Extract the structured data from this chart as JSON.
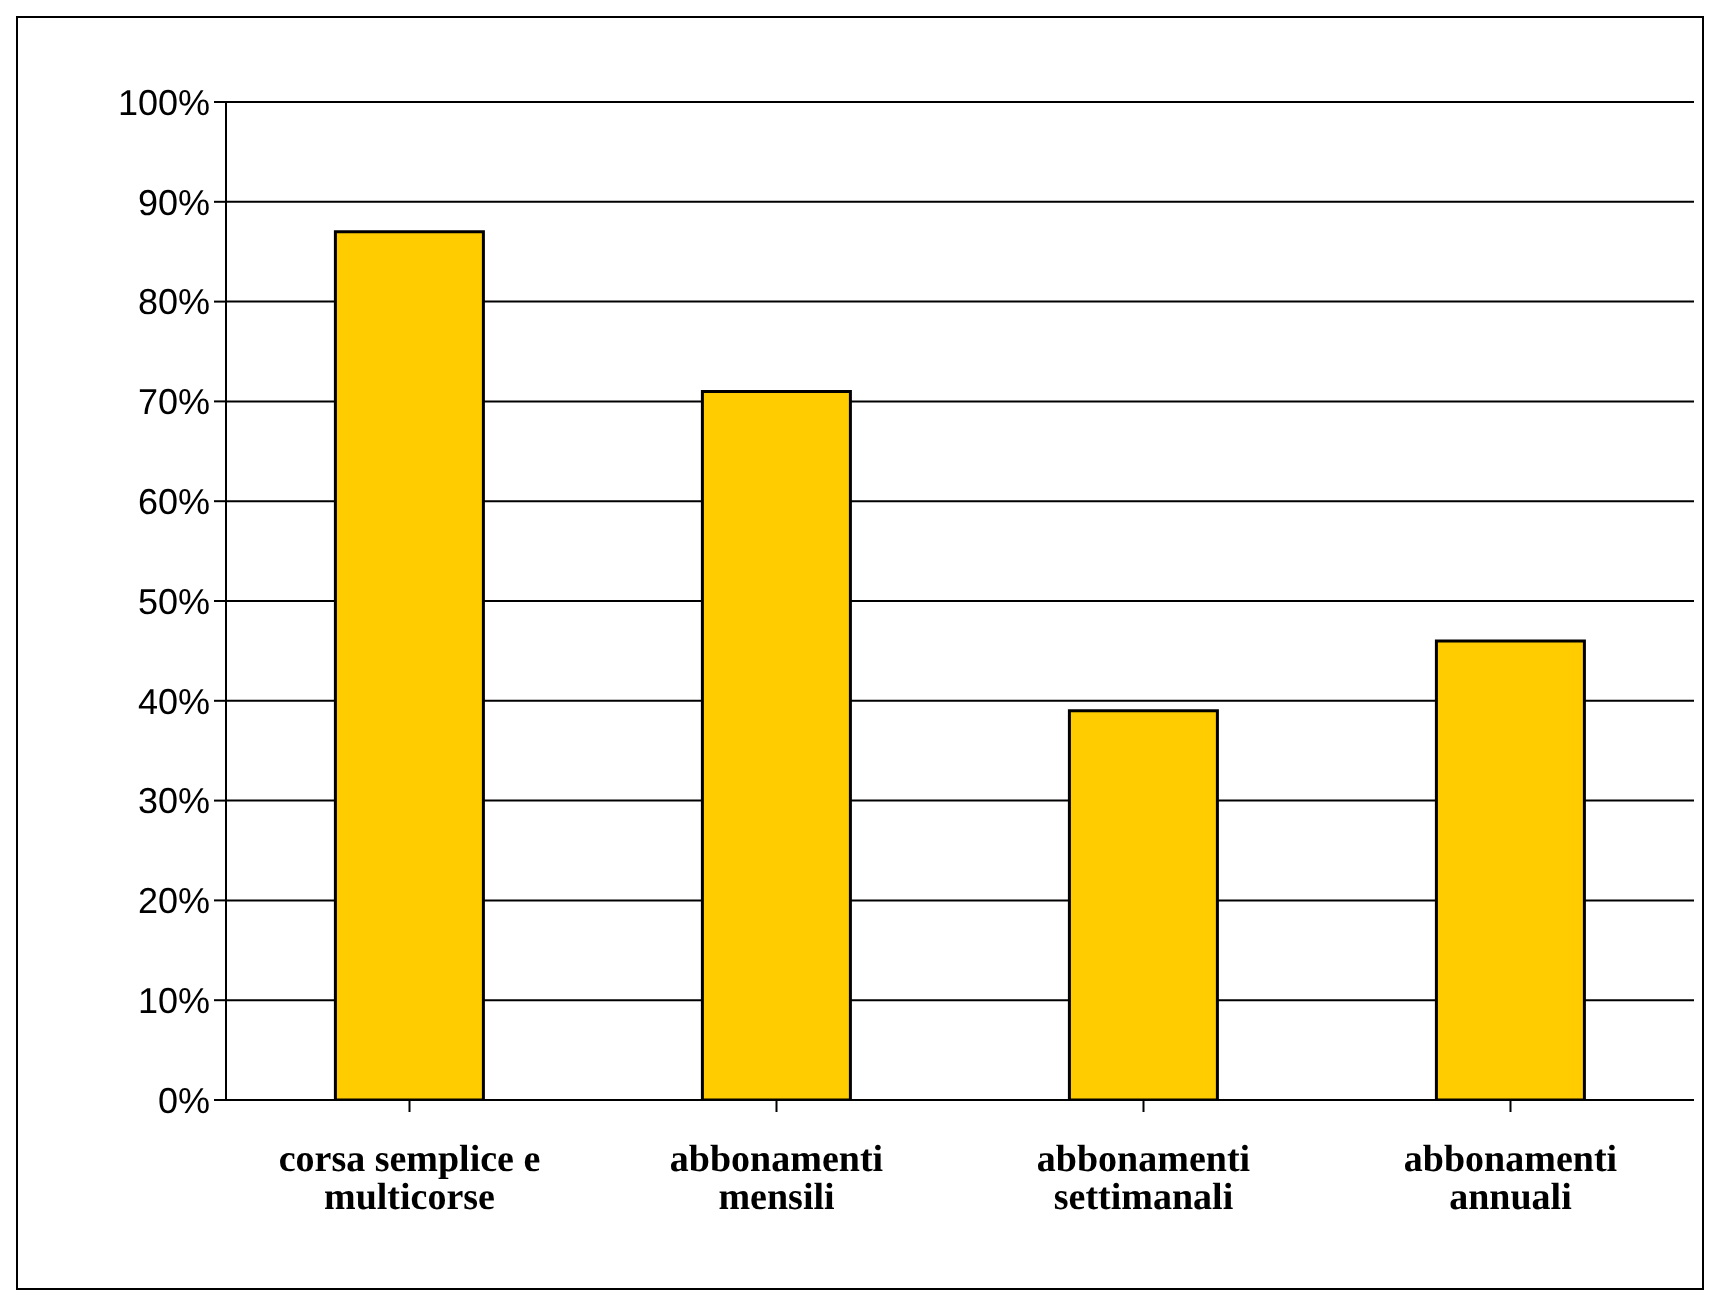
{
  "chart_data": {
    "type": "bar",
    "categories": [
      "corsa semplice e multicorse",
      "abbonamenti mensili",
      "abbonamenti settimanali",
      "abbonamenti annuali"
    ],
    "values": [
      87,
      71,
      39,
      46
    ],
    "color": "#ffcc00",
    "ylim": [
      0,
      100
    ],
    "yticks": [
      {
        "value": 0,
        "label": "0%"
      },
      {
        "value": 10,
        "label": "10%"
      },
      {
        "value": 20,
        "label": "20%"
      },
      {
        "value": 30,
        "label": "30%"
      },
      {
        "value": 40,
        "label": "40%"
      },
      {
        "value": 50,
        "label": "50%"
      },
      {
        "value": 60,
        "label": "60%"
      },
      {
        "value": 70,
        "label": "70%"
      },
      {
        "value": 80,
        "label": "80%"
      },
      {
        "value": 90,
        "label": "90%"
      },
      {
        "value": 100,
        "label": "100%"
      }
    ],
    "grid": "y",
    "legend": false
  }
}
